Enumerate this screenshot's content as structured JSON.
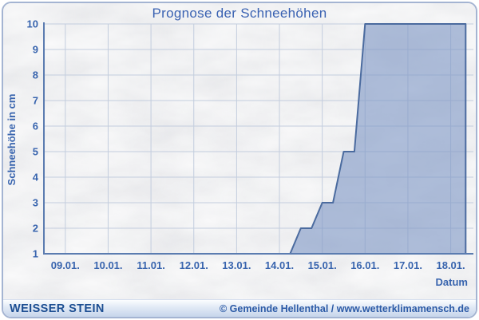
{
  "window": {
    "title": "Prognose der Schneehöhen"
  },
  "chart_data": {
    "type": "area",
    "title": "Prognose der Schneehöhen",
    "xlabel": "Datum",
    "ylabel": "Schneehöhe in cm",
    "x_ticks": [
      {
        "day": 9,
        "label": "09.01."
      },
      {
        "day": 10,
        "label": "10.01."
      },
      {
        "day": 11,
        "label": "11.01."
      },
      {
        "day": 12,
        "label": "12.01."
      },
      {
        "day": 13,
        "label": "13.01."
      },
      {
        "day": 14,
        "label": "14.01."
      },
      {
        "day": 15,
        "label": "15.01."
      },
      {
        "day": 16,
        "label": "16.01."
      },
      {
        "day": 17,
        "label": "17.01."
      },
      {
        "day": 18,
        "label": "18.01."
      }
    ],
    "y_ticks": [
      1,
      2,
      3,
      4,
      5,
      6,
      7,
      8,
      9,
      10
    ],
    "xlim": [
      8.5,
      18.53
    ],
    "ylim": [
      1,
      10
    ],
    "grid": true,
    "legend": "none",
    "series": [
      {
        "name": "Schneehöhe (cm)",
        "points": [
          [
            8.5,
            1
          ],
          [
            14.25,
            1
          ],
          [
            14.5,
            2
          ],
          [
            14.75,
            2
          ],
          [
            15.0,
            3
          ],
          [
            15.25,
            3
          ],
          [
            15.5,
            5
          ],
          [
            15.75,
            5
          ],
          [
            16.0,
            10
          ],
          [
            18.35,
            10
          ]
        ]
      }
    ],
    "colors": {
      "title_text": "#3a62b2",
      "label_text": "#3864ae",
      "axis_line": "#5b7cb0",
      "grid_line": "#c3cdde",
      "area_fill": "rgba(125,150,196,0.60)",
      "area_stroke": "#4b6b9f",
      "frame_border": "#a4b4d2",
      "background": "#e7e8ea"
    }
  },
  "footer": {
    "left": "WEISSER STEIN",
    "right": "© Gemeinde Hellenthal / www.wetterklimamensch.de"
  }
}
